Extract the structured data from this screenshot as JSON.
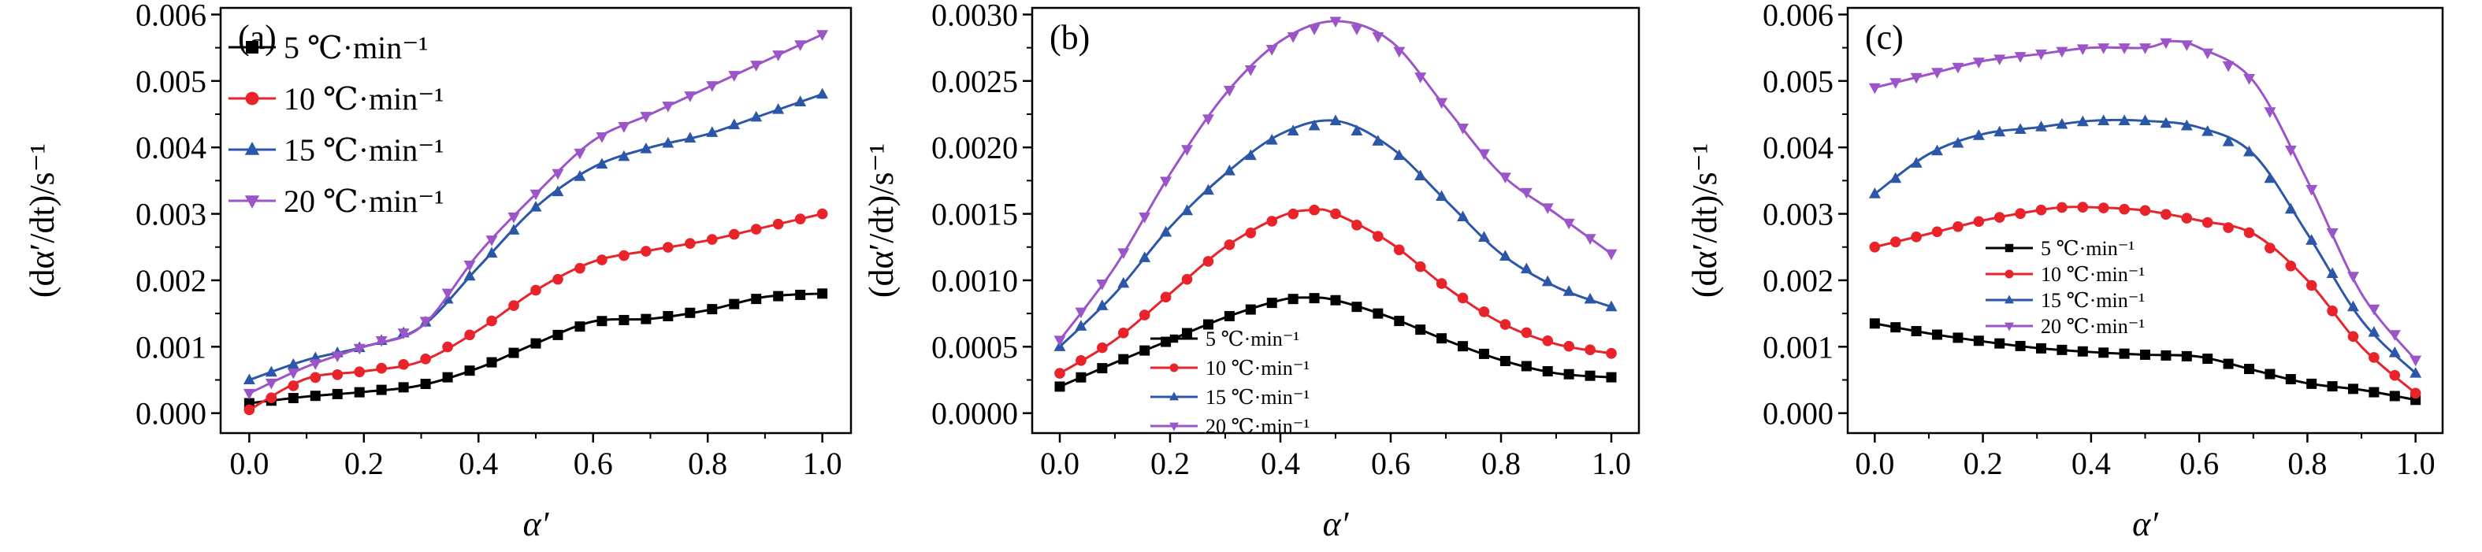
{
  "chart_data": [
    {
      "type": "line",
      "panel_label": "(a)",
      "xlabel": "α′",
      "ylabel": "(dα′/dt)/s⁻¹",
      "xlim": [
        -0.05,
        1.05
      ],
      "ylim": [
        -0.0003,
        0.0061
      ],
      "xticks": [
        0.0,
        0.2,
        0.4,
        0.6,
        0.8,
        1.0
      ],
      "xtick_labels": [
        "0.0",
        "0.2",
        "0.4",
        "0.6",
        "0.8",
        "1.0"
      ],
      "yticks": [
        0.0,
        0.001,
        0.002,
        0.003,
        0.004,
        0.005,
        0.006
      ],
      "ytick_labels": [
        "0.000",
        "0.001",
        "0.002",
        "0.003",
        "0.004",
        "0.005",
        "0.006"
      ],
      "legend_position": "top-left",
      "series": [
        {
          "name": "5 ℃·min⁻¹",
          "color": "#000000",
          "marker": "square",
          "x": [
            0.0,
            0.1,
            0.2,
            0.3,
            0.4,
            0.5,
            0.6,
            0.7,
            0.8,
            0.9,
            1.0
          ],
          "y": [
            0.00015,
            0.00025,
            0.00032,
            0.00042,
            0.00068,
            0.00105,
            0.00138,
            0.00142,
            0.00155,
            0.00175,
            0.0018
          ]
        },
        {
          "name": "10 ℃·min⁻¹",
          "color": "#e8232a",
          "marker": "circle",
          "x": [
            0.0,
            0.1,
            0.2,
            0.3,
            0.4,
            0.5,
            0.6,
            0.7,
            0.8,
            0.9,
            1.0
          ],
          "y": [
            5e-05,
            0.00052,
            0.00063,
            0.00078,
            0.00125,
            0.00185,
            0.00228,
            0.00245,
            0.0026,
            0.0028,
            0.003
          ]
        },
        {
          "name": "15 ℃·min⁻¹",
          "color": "#2c57a8",
          "marker": "triangle-up",
          "x": [
            0.0,
            0.1,
            0.2,
            0.3,
            0.4,
            0.5,
            0.6,
            0.7,
            0.8,
            0.9,
            1.0
          ],
          "y": [
            0.0005,
            0.0008,
            0.001,
            0.0013,
            0.0022,
            0.0031,
            0.0037,
            0.004,
            0.0042,
            0.0045,
            0.0048
          ]
        },
        {
          "name": "20 ℃·min⁻¹",
          "color": "#9b55c8",
          "marker": "triangle-down",
          "x": [
            0.0,
            0.1,
            0.2,
            0.3,
            0.4,
            0.5,
            0.6,
            0.7,
            0.8,
            0.9,
            1.0
          ],
          "y": [
            0.0003,
            0.0007,
            0.001,
            0.0013,
            0.0024,
            0.0033,
            0.0041,
            0.0045,
            0.0049,
            0.0053,
            0.0057
          ]
        }
      ]
    },
    {
      "type": "line",
      "panel_label": "(b)",
      "xlabel": "α′",
      "ylabel": "(dα′/dt)/s⁻¹",
      "xlim": [
        -0.05,
        1.05
      ],
      "ylim": [
        -0.00015,
        0.00305
      ],
      "xticks": [
        0.0,
        0.2,
        0.4,
        0.6,
        0.8,
        1.0
      ],
      "xtick_labels": [
        "0.0",
        "0.2",
        "0.4",
        "0.6",
        "0.8",
        "1.0"
      ],
      "yticks": [
        0.0,
        0.0005,
        0.001,
        0.0015,
        0.002,
        0.0025,
        0.003
      ],
      "ytick_labels": [
        "0.0000",
        "0.0005",
        "0.0010",
        "0.0015",
        "0.0020",
        "0.0025",
        "0.0030"
      ],
      "legend_position": "bottom-center",
      "series": [
        {
          "name": "5 ℃·min⁻¹",
          "color": "#000000",
          "marker": "square",
          "x": [
            0.0,
            0.1,
            0.2,
            0.3,
            0.4,
            0.45,
            0.5,
            0.6,
            0.7,
            0.8,
            0.9,
            1.0
          ],
          "y": [
            0.0002,
            0.00038,
            0.00055,
            0.00072,
            0.00085,
            0.00087,
            0.00085,
            0.00072,
            0.00055,
            0.0004,
            0.0003,
            0.00027
          ]
        },
        {
          "name": "10 ℃·min⁻¹",
          "color": "#e8232a",
          "marker": "circle",
          "x": [
            0.0,
            0.1,
            0.2,
            0.3,
            0.4,
            0.46,
            0.5,
            0.6,
            0.7,
            0.8,
            0.9,
            1.0
          ],
          "y": [
            0.0003,
            0.00055,
            0.0009,
            0.00125,
            0.00148,
            0.00153,
            0.0015,
            0.00128,
            0.00095,
            0.00068,
            0.00052,
            0.00045
          ]
        },
        {
          "name": "15 ℃·min⁻¹",
          "color": "#2c57a8",
          "marker": "triangle-up",
          "x": [
            0.0,
            0.1,
            0.2,
            0.3,
            0.4,
            0.5,
            0.6,
            0.7,
            0.8,
            0.9,
            1.0
          ],
          "y": [
            0.0005,
            0.0009,
            0.0014,
            0.0018,
            0.0021,
            0.0022,
            0.002,
            0.0016,
            0.0012,
            0.00095,
            0.0008
          ]
        },
        {
          "name": "20 ℃·min⁻¹",
          "color": "#9b55c8",
          "marker": "triangle-down",
          "x": [
            0.0,
            0.1,
            0.2,
            0.3,
            0.4,
            0.5,
            0.6,
            0.7,
            0.8,
            0.9,
            1.0
          ],
          "y": [
            0.00055,
            0.0011,
            0.0018,
            0.0024,
            0.0028,
            0.00295,
            0.0028,
            0.0023,
            0.0018,
            0.0015,
            0.0012
          ]
        }
      ]
    },
    {
      "type": "line",
      "panel_label": "(c)",
      "xlabel": "α′",
      "ylabel": "(dα′/dt)/s⁻¹",
      "xlim": [
        -0.05,
        1.05
      ],
      "ylim": [
        -0.0003,
        0.0061
      ],
      "xticks": [
        0.0,
        0.2,
        0.4,
        0.6,
        0.8,
        1.0
      ],
      "xtick_labels": [
        "0.0",
        "0.2",
        "0.4",
        "0.6",
        "0.8",
        "1.0"
      ],
      "yticks": [
        0.0,
        0.001,
        0.002,
        0.003,
        0.004,
        0.005,
        0.006
      ],
      "ytick_labels": [
        "0.000",
        "0.001",
        "0.002",
        "0.003",
        "0.004",
        "0.005",
        "0.006"
      ],
      "legend_position": "center",
      "series": [
        {
          "name": "5 ℃·min⁻¹",
          "color": "#000000",
          "marker": "square",
          "x": [
            0.0,
            0.1,
            0.2,
            0.3,
            0.4,
            0.5,
            0.6,
            0.7,
            0.8,
            0.9,
            1.0
          ],
          "y": [
            0.00135,
            0.0012,
            0.00108,
            0.00098,
            0.00092,
            0.00088,
            0.00085,
            0.00065,
            0.00045,
            0.00035,
            0.0002
          ]
        },
        {
          "name": "10 ℃·min⁻¹",
          "color": "#e8232a",
          "marker": "circle",
          "x": [
            0.0,
            0.1,
            0.2,
            0.3,
            0.35,
            0.4,
            0.5,
            0.6,
            0.7,
            0.8,
            0.9,
            1.0
          ],
          "y": [
            0.0025,
            0.0027,
            0.0029,
            0.00305,
            0.0031,
            0.0031,
            0.00305,
            0.0029,
            0.0027,
            0.002,
            0.001,
            0.0003
          ]
        },
        {
          "name": "15 ℃·min⁻¹",
          "color": "#2c57a8",
          "marker": "triangle-up",
          "x": [
            0.0,
            0.1,
            0.2,
            0.3,
            0.4,
            0.5,
            0.6,
            0.7,
            0.8,
            0.9,
            1.0
          ],
          "y": [
            0.0033,
            0.0039,
            0.0042,
            0.0043,
            0.0044,
            0.0044,
            0.0043,
            0.0039,
            0.0027,
            0.0014,
            0.0006
          ]
        },
        {
          "name": "20 ℃·min⁻¹",
          "color": "#9b55c8",
          "marker": "triangle-down",
          "x": [
            0.0,
            0.1,
            0.2,
            0.3,
            0.4,
            0.5,
            0.55,
            0.6,
            0.7,
            0.8,
            0.9,
            1.0
          ],
          "y": [
            0.0049,
            0.0051,
            0.0053,
            0.0054,
            0.0055,
            0.0055,
            0.0056,
            0.0055,
            0.005,
            0.0035,
            0.0018,
            0.0008
          ]
        }
      ]
    }
  ]
}
